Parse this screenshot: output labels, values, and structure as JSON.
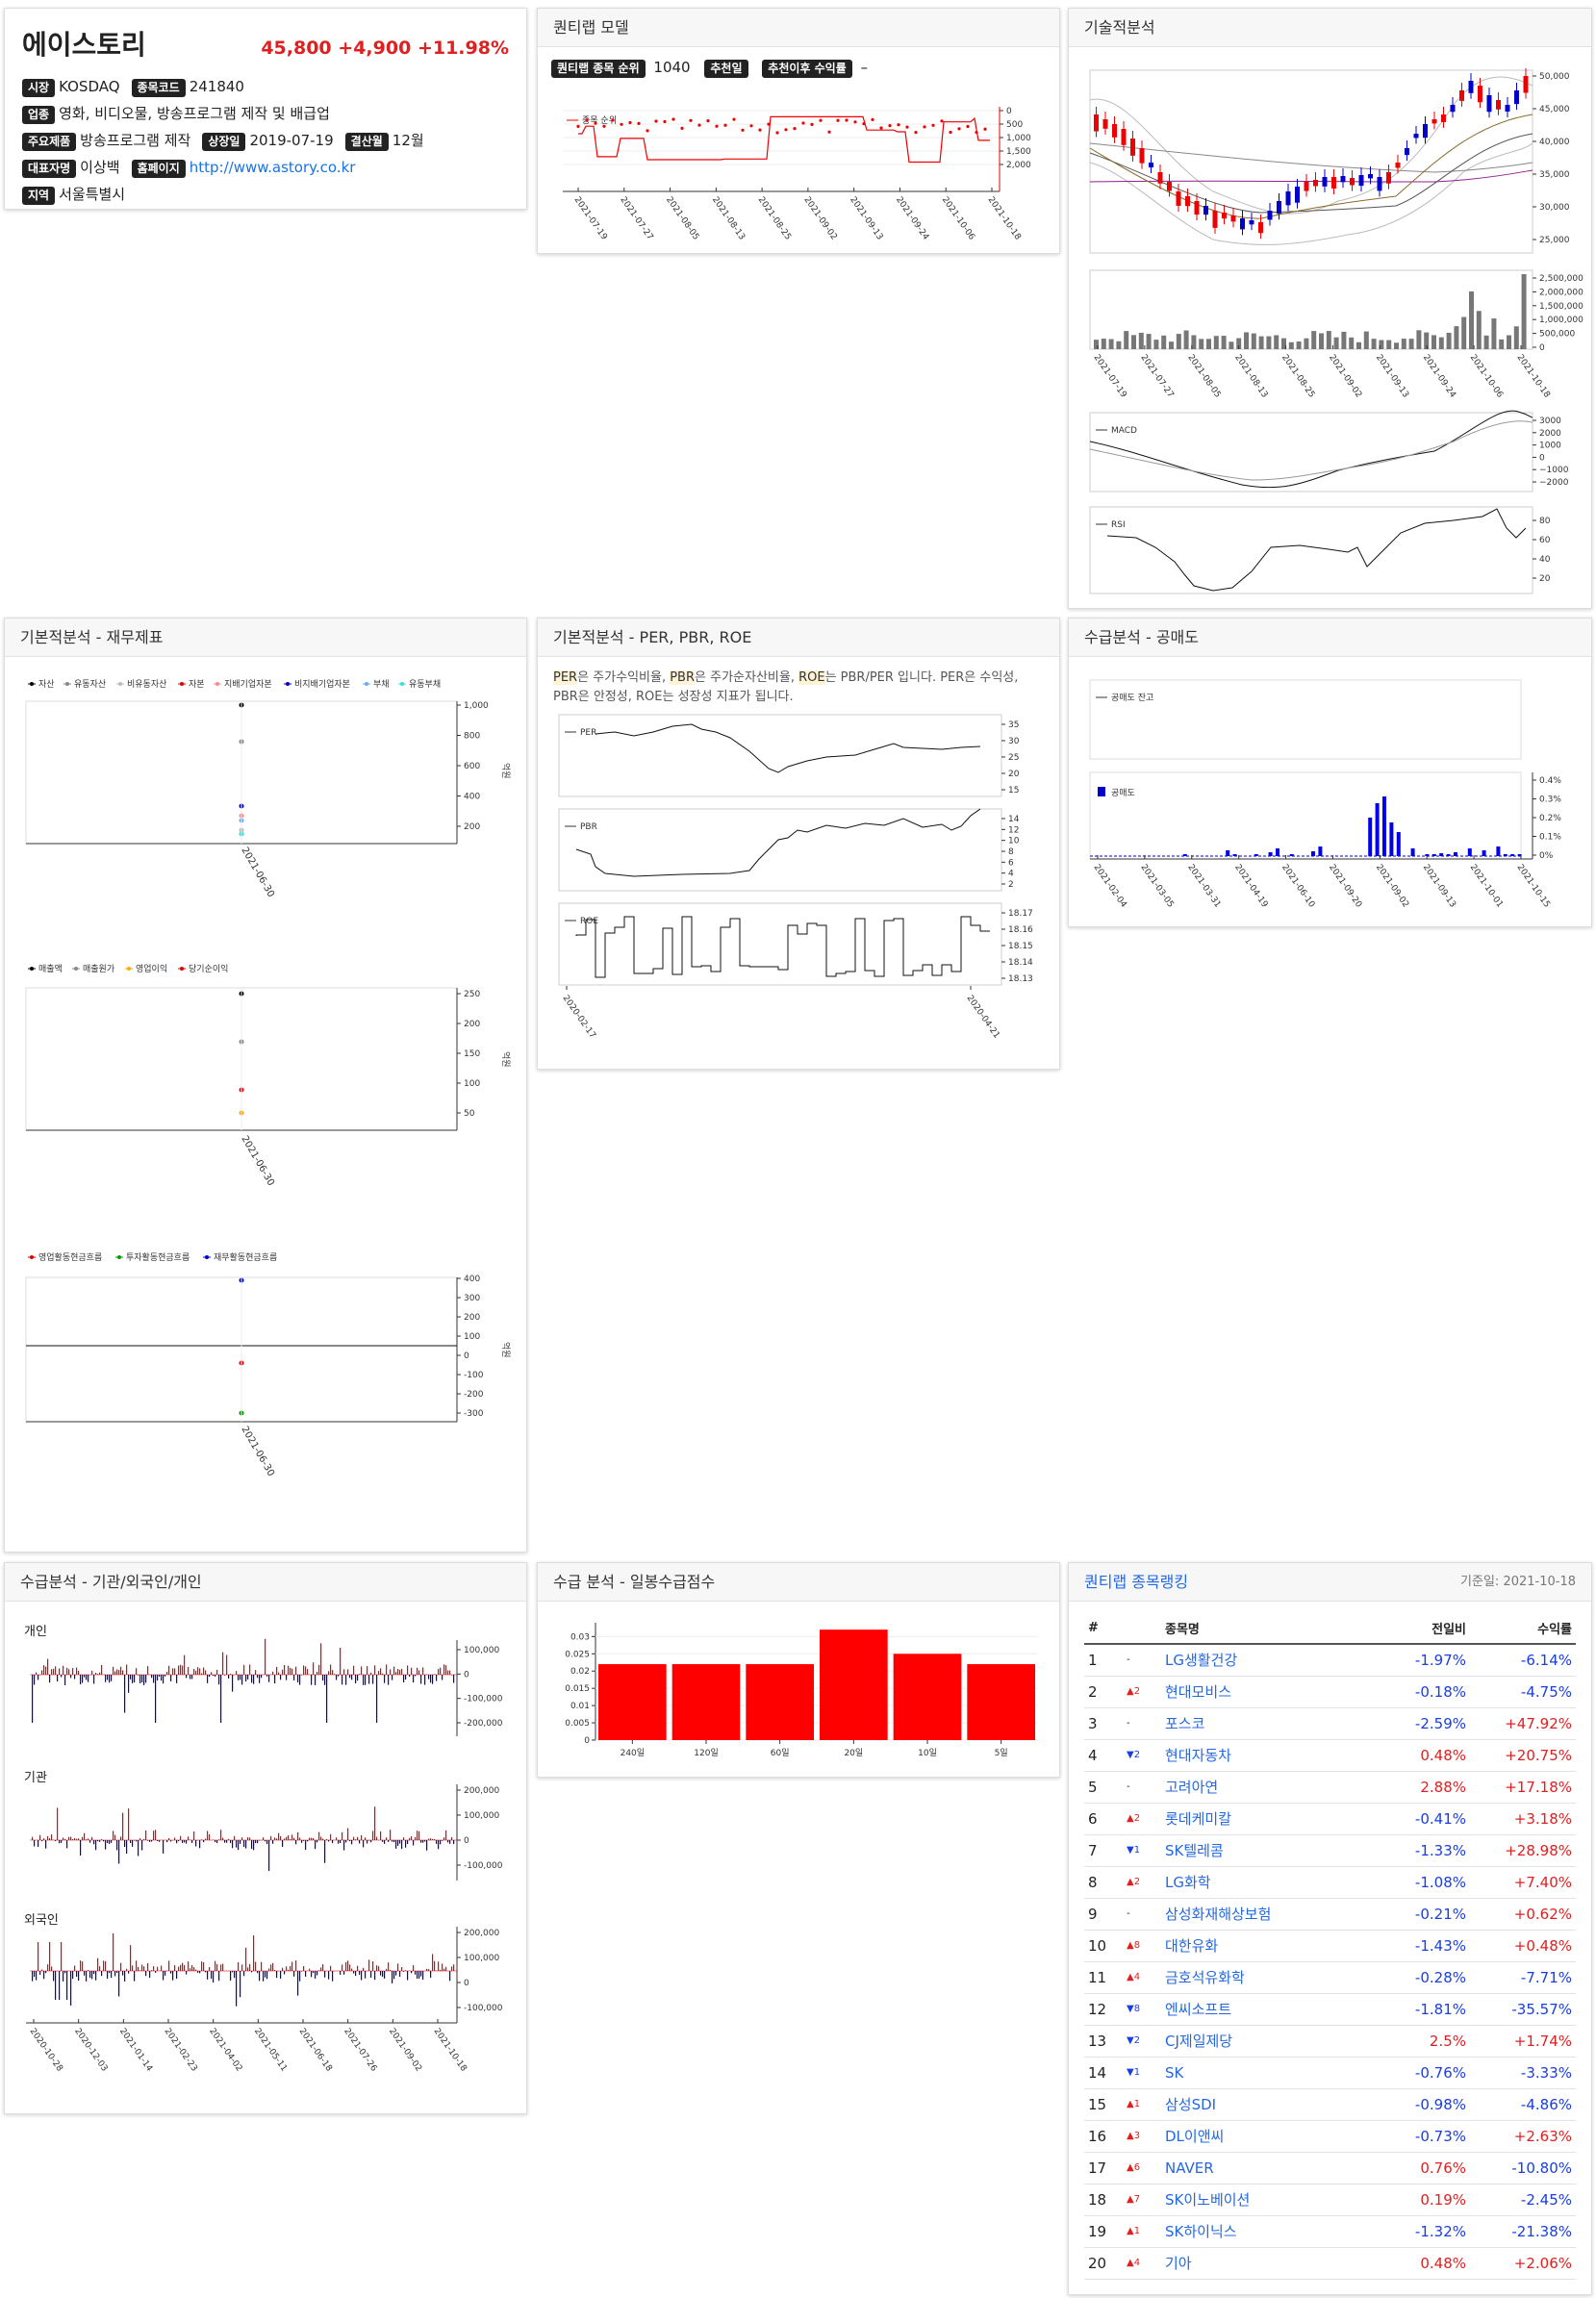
{
  "stock": {
    "name": "에이스토리",
    "price": "45,800",
    "change": "+4,900",
    "pct": "+11.98%",
    "market_label": "시장",
    "market": "KOSDAQ",
    "code_label": "종목코드",
    "code": "241840",
    "industry_label": "업종",
    "industry": "영화, 비디오물, 방송프로그램 제작 및 배급업",
    "product_label": "주요제품",
    "product": "방송프로그램 제작",
    "listing_label": "상장일",
    "listing": "2019-07-19",
    "fiscal_label": "결산월",
    "fiscal": "12월",
    "ceo_label": "대표자명",
    "ceo": "이상백",
    "homepage_label": "홈페이지",
    "homepage": "http://www.astory.co.kr",
    "region_label": "지역",
    "region": "서울특별시"
  },
  "quant": {
    "title": "퀀티랩 모델",
    "rank_label": "퀀티랩 종목 순위",
    "rank": "1040",
    "rec_label": "추천일",
    "ret_label": "추천이후 수익률",
    "ret": "–",
    "legend": "종목 순위",
    "yticks": [
      "0",
      "500",
      "1,000",
      "1,500",
      "2,000"
    ],
    "xticks": [
      "2021-07-19",
      "2021-07-27",
      "2021-08-05",
      "2021-08-13",
      "2021-08-25",
      "2021-09-02",
      "2021-09-13",
      "2021-09-24",
      "2021-10-06",
      "2021-10-18"
    ]
  },
  "tech": {
    "title": "기술적분석",
    "price_ticks": [
      "50,000",
      "45,000",
      "40,000",
      "35,000",
      "30,000",
      "25,000"
    ],
    "vol_ticks": [
      "2,500,000",
      "2,000,000",
      "1,500,000",
      "1,000,000",
      "500,000",
      "0"
    ],
    "xticks": [
      "2021-07-19",
      "2021-07-27",
      "2021-08-05",
      "2021-08-13",
      "2021-08-25",
      "2021-09-02",
      "2021-09-13",
      "2021-09-24",
      "2021-10-06",
      "2021-10-18"
    ],
    "macd_label": "MACD",
    "macd_ticks": [
      "3000",
      "2000",
      "1000",
      "0",
      "−1000",
      "−2000"
    ],
    "rsi_label": "RSI",
    "rsi_ticks": [
      "80",
      "60",
      "40",
      "20"
    ]
  },
  "fund": {
    "title": "기본적분석 - 재무제표",
    "legend1": [
      {
        "name": "자산",
        "color": "#000000"
      },
      {
        "name": "유동자산",
        "color": "#888888"
      },
      {
        "name": "비유동자산",
        "color": "#bbbbbb"
      },
      {
        "name": "자본",
        "color": "#e00000"
      },
      {
        "name": "지배기업자본",
        "color": "#ff8888"
      },
      {
        "name": "비지배기업자본",
        "color": "#0000cc"
      },
      {
        "name": "부채",
        "color": "#66aaff"
      },
      {
        "name": "유동부채",
        "color": "#33dddd"
      }
    ],
    "ticks1": [
      "1,000",
      "800",
      "600",
      "400",
      "200"
    ],
    "legend2": [
      {
        "name": "매출액",
        "color": "#000000"
      },
      {
        "name": "매출원가",
        "color": "#888888"
      },
      {
        "name": "영업이익",
        "color": "#ffaa00"
      },
      {
        "name": "당기순이익",
        "color": "#e00000"
      }
    ],
    "ticks2": [
      "250",
      "200",
      "150",
      "100",
      "50"
    ],
    "legend3": [
      {
        "name": "영업활동현금흐름",
        "color": "#e00000"
      },
      {
        "name": "투자활동현금흐름",
        "color": "#009900"
      },
      {
        "name": "재무활동현금흐름",
        "color": "#0000cc"
      }
    ],
    "ticks3": [
      "400",
      "300",
      "200",
      "100",
      "0",
      "-100",
      "-200",
      "-300"
    ],
    "unit": "억원",
    "date": "2021-06-30"
  },
  "ratio": {
    "title": "기본적분석 - PER, PBR, ROE",
    "k1": "PER",
    "t1": "은 주가수익비율, ",
    "k2": "PBR",
    "t2": "은 주가순자산비율, ",
    "k3": "ROE",
    "t3": "는 PBR/PER 입니다. PER은 수익성, PBR은 안정성, ROE는 성장성 지표가 됩니다.",
    "per_label": "PER",
    "per_ticks": [
      "35",
      "30",
      "25",
      "20",
      "15"
    ],
    "pbr_label": "PBR",
    "pbr_ticks": [
      "14",
      "12",
      "10",
      "8",
      "6",
      "4",
      "2"
    ],
    "roe_label": "ROE",
    "roe_ticks": [
      "18.17",
      "18.16",
      "18.15",
      "18.14",
      "18.13"
    ],
    "xticks": [
      "2020-02-17",
      "2020-04-21"
    ]
  },
  "short": {
    "title": "수급분석 - 공매도",
    "bal_label": "공매도 잔고",
    "sell_label": "공매도",
    "ticks": [
      "0.4%",
      "0.3%",
      "0.2%",
      "0.1%",
      "0%"
    ],
    "xticks": [
      "2021-02-04",
      "2021-03-05",
      "2021-03-31",
      "2021-04-19",
      "2021-06-10",
      "2021-09-20",
      "2021-09-02",
      "2021-09-13",
      "2021-10-01",
      "2021-10-15"
    ]
  },
  "flow": {
    "title": "수급분석 - 기관/외국인/개인",
    "personal": "개인",
    "inst": "기관",
    "foreign": "외국인",
    "p_ticks": [
      "100,000",
      "0",
      "-100,000",
      "-200,000"
    ],
    "i_ticks": [
      "200,000",
      "100,000",
      "0",
      "-100,000"
    ],
    "f_ticks": [
      "200,000",
      "100,000",
      "0",
      "-100,000"
    ],
    "xticks": [
      "2020-10-28",
      "2020-12-03",
      "2021-01-14",
      "2021-02-23",
      "2021-04-02",
      "2021-05-11",
      "2021-06-18",
      "2021-07-26",
      "2021-09-02",
      "2021-10-18"
    ]
  },
  "score": {
    "title": "수급 분석 - 일봉수급점수"
  },
  "chart_data": {
    "type": "bar",
    "categories": [
      "240일",
      "120일",
      "60일",
      "20일",
      "10일",
      "5일"
    ],
    "values": [
      0.022,
      0.022,
      0.022,
      0.032,
      0.025,
      0.022
    ],
    "yticks": [
      "0.03",
      "0.025",
      "0.02",
      "0.015",
      "0.01",
      "0.005",
      "0"
    ],
    "ylim": [
      0,
      0.034
    ]
  },
  "rank": {
    "title": "퀀티랩 종목랭킹",
    "date": "기준일: 2021-10-18",
    "h_no": "#",
    "h_name": "종목명",
    "h_chg": "전일비",
    "h_ret": "수익률",
    "rows": [
      {
        "n": "1",
        "mv": "-",
        "md": "flat",
        "name": "LG생활건강",
        "chg": "-1.97%",
        "ret": "-6.14%"
      },
      {
        "n": "2",
        "mv": "▲2",
        "md": "up",
        "name": "현대모비스",
        "chg": "-0.18%",
        "ret": "-4.75%"
      },
      {
        "n": "3",
        "mv": "-",
        "md": "flat",
        "name": "포스코",
        "chg": "-2.59%",
        "ret": "+47.92%"
      },
      {
        "n": "4",
        "mv": "▼2",
        "md": "dn",
        "name": "현대자동차",
        "chg": "0.48%",
        "ret": "+20.75%"
      },
      {
        "n": "5",
        "mv": "-",
        "md": "flat",
        "name": "고려아연",
        "chg": "2.88%",
        "ret": "+17.18%"
      },
      {
        "n": "6",
        "mv": "▲2",
        "md": "up",
        "name": "롯데케미칼",
        "chg": "-0.41%",
        "ret": "+3.18%"
      },
      {
        "n": "7",
        "mv": "▼1",
        "md": "dn",
        "name": "SK텔레콤",
        "chg": "-1.33%",
        "ret": "+28.98%"
      },
      {
        "n": "8",
        "mv": "▲2",
        "md": "up",
        "name": "LG화학",
        "chg": "-1.08%",
        "ret": "+7.40%"
      },
      {
        "n": "9",
        "mv": "-",
        "md": "flat",
        "name": "삼성화재해상보험",
        "chg": "-0.21%",
        "ret": "+0.62%"
      },
      {
        "n": "10",
        "mv": "▲8",
        "md": "up",
        "name": "대한유화",
        "chg": "-1.43%",
        "ret": "+0.48%"
      },
      {
        "n": "11",
        "mv": "▲4",
        "md": "up",
        "name": "금호석유화학",
        "chg": "-0.28%",
        "ret": "-7.71%"
      },
      {
        "n": "12",
        "mv": "▼8",
        "md": "dn",
        "name": "엔씨소프트",
        "chg": "-1.81%",
        "ret": "-35.57%"
      },
      {
        "n": "13",
        "mv": "▼2",
        "md": "dn",
        "name": "CJ제일제당",
        "chg": "2.5%",
        "ret": "+1.74%"
      },
      {
        "n": "14",
        "mv": "▼1",
        "md": "dn",
        "name": "SK",
        "chg": "-0.76%",
        "ret": "-3.33%"
      },
      {
        "n": "15",
        "mv": "▲1",
        "md": "up",
        "name": "삼성SDI",
        "chg": "-0.98%",
        "ret": "-4.86%"
      },
      {
        "n": "16",
        "mv": "▲3",
        "md": "up",
        "name": "DL이앤씨",
        "chg": "-0.73%",
        "ret": "+2.63%"
      },
      {
        "n": "17",
        "mv": "▲6",
        "md": "up",
        "name": "NAVER",
        "chg": "0.76%",
        "ret": "-10.80%"
      },
      {
        "n": "18",
        "mv": "▲7",
        "md": "up",
        "name": "SK이노베이션",
        "chg": "0.19%",
        "ret": "-2.45%"
      },
      {
        "n": "19",
        "mv": "▲1",
        "md": "up",
        "name": "SK하이닉스",
        "chg": "-1.32%",
        "ret": "-21.38%"
      },
      {
        "n": "20",
        "mv": "▲4",
        "md": "up",
        "name": "기아",
        "chg": "0.48%",
        "ret": "+2.06%"
      }
    ]
  }
}
